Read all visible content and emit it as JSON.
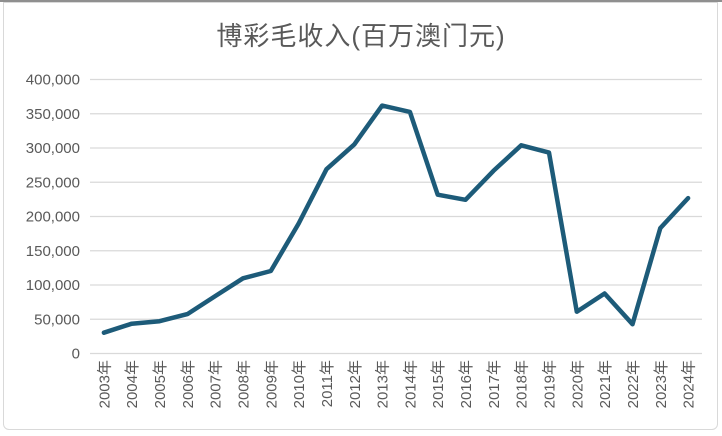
{
  "chart": {
    "title": "博彩毛收入(百万澳门元)"
  },
  "chart_data": {
    "type": "line",
    "title": "博彩毛收入(百万澳门元)",
    "categories": [
      "2003年",
      "2004年",
      "2005年",
      "2006年",
      "2007年",
      "2008年",
      "2009年",
      "2010年",
      "2011年",
      "2012年",
      "2013年",
      "2014年",
      "2015年",
      "2016年",
      "2017年",
      "2018年",
      "2019年",
      "2020年",
      "2021年",
      "2022年",
      "2023年",
      "2024年"
    ],
    "values": [
      30315,
      43511,
      47134,
      57521,
      83847,
      109826,
      120383,
      189588,
      269058,
      305235,
      361866,
      352714,
      231811,
      224343,
      266537,
      303879,
      293310,
      61044,
      87577,
      42702,
      183059,
      226800
    ],
    "xlabel": "",
    "ylabel": "",
    "ylim": [
      0,
      400000
    ],
    "ytick_step": 50000,
    "ytick_labels": [
      "0",
      "50,000",
      "100,000",
      "150,000",
      "200,000",
      "250,000",
      "300,000",
      "350,000",
      "400,000"
    ],
    "grid": true,
    "legend_position": "none",
    "line_color": "#1d5b79",
    "grid_color": "#d9d9d9",
    "text_color": "#595959",
    "title_color": "#595959"
  }
}
